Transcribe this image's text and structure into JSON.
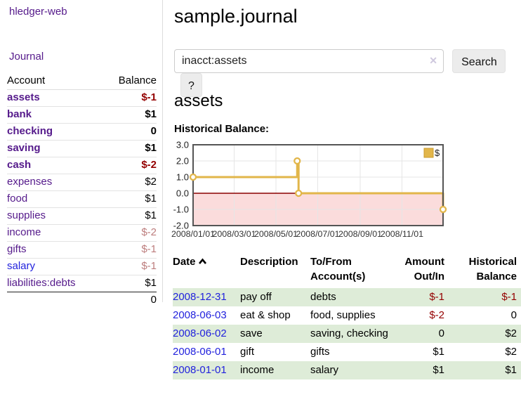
{
  "sidebar": {
    "brand": "hledger-web",
    "nav": {
      "journal_label": "Journal"
    },
    "accounts_table": {
      "headers": {
        "account": "Account",
        "balance": "Balance"
      },
      "rows": [
        {
          "label": "assets",
          "depth": 0,
          "bold": true,
          "link": "purple",
          "balance": "$-1",
          "tone": "neg-strong"
        },
        {
          "label": "bank",
          "depth": 1,
          "bold": true,
          "link": "purple",
          "balance": "$1",
          "tone": "normal"
        },
        {
          "label": "checking",
          "depth": 2,
          "bold": true,
          "link": "purple",
          "balance": "0",
          "tone": "normal"
        },
        {
          "label": "saving",
          "depth": 2,
          "bold": true,
          "link": "purple",
          "balance": "$1",
          "tone": "normal"
        },
        {
          "label": "cash",
          "depth": 1,
          "bold": true,
          "link": "purple",
          "balance": "$-2",
          "tone": "neg-strong"
        },
        {
          "label": "expenses",
          "depth": 0,
          "bold": false,
          "link": "purple",
          "balance": "$2",
          "tone": "normal"
        },
        {
          "label": "food",
          "depth": 1,
          "bold": false,
          "link": "purple",
          "balance": "$1",
          "tone": "normal"
        },
        {
          "label": "supplies",
          "depth": 1,
          "bold": false,
          "link": "purple",
          "balance": "$1",
          "tone": "normal"
        },
        {
          "label": "income",
          "depth": 0,
          "bold": false,
          "link": "purple",
          "balance": "$-2",
          "tone": "neg-soft"
        },
        {
          "label": "gifts",
          "depth": 1,
          "bold": false,
          "link": "purple",
          "balance": "$-1",
          "tone": "neg-soft"
        },
        {
          "label": "salary",
          "depth": 1,
          "bold": false,
          "link": "blue",
          "balance": "$-1",
          "tone": "neg-soft"
        },
        {
          "label": "liabilities:debts",
          "depth": 0,
          "bold": false,
          "link": "purple",
          "balance": "$1",
          "tone": "normal"
        }
      ],
      "total": "0"
    }
  },
  "main": {
    "title": "sample.journal",
    "search": {
      "value": "inacct:assets",
      "clear_icon": "✕",
      "button_label": "Search",
      "help_label": "?"
    },
    "account_heading": "assets",
    "chart_label": "Historical Balance:",
    "register_table": {
      "headers": {
        "date": "Date",
        "description": "Description",
        "accounts": "To/From Account(s)",
        "amount": "Amount Out/In",
        "balance": "Historical Balance"
      },
      "rows": [
        {
          "date": "2008-12-31",
          "description": "pay off",
          "accounts": "debts",
          "amount": "$-1",
          "amount_tone": "neg-strong",
          "balance": "$-1",
          "balance_tone": "neg-strong",
          "shaded": true
        },
        {
          "date": "2008-06-03",
          "description": "eat & shop",
          "accounts": "food, supplies",
          "amount": "$-2",
          "amount_tone": "neg-strong",
          "balance": "0",
          "balance_tone": "normal",
          "shaded": false
        },
        {
          "date": "2008-06-02",
          "description": "save",
          "accounts": "saving, checking",
          "amount": "0",
          "amount_tone": "normal",
          "balance": "$2",
          "balance_tone": "normal",
          "shaded": true
        },
        {
          "date": "2008-06-01",
          "description": "gift",
          "accounts": "gifts",
          "amount": "$1",
          "amount_tone": "normal",
          "balance": "$2",
          "balance_tone": "normal",
          "shaded": false
        },
        {
          "date": "2008-01-01",
          "description": "income",
          "accounts": "salary",
          "amount": "$1",
          "amount_tone": "normal",
          "balance": "$1",
          "balance_tone": "normal",
          "shaded": true
        }
      ]
    }
  },
  "colors": {
    "link_purple": "#551a8b",
    "link_blue": "#2222dd",
    "negative_strong": "#940000",
    "negative_soft": "#bd7d7d",
    "row_shade_green": "#deecd8",
    "chart_line_gold": "#e2b64a"
  },
  "chart_data": {
    "type": "line",
    "step": true,
    "title": "Historical Balance:",
    "legend": "$",
    "legend_position": "top-right",
    "grid": true,
    "x_start": "2008-01-01",
    "x_end": "2008-12-31",
    "ylim": [
      -2,
      3
    ],
    "yticks": [
      "3.0",
      "2.0",
      "1.0",
      "0.0",
      "-1.0",
      "-2.0"
    ],
    "xticks": [
      {
        "date": "2008-01-01",
        "label": "2008/01/01"
      },
      {
        "date": "2008-03-01",
        "label": "2008/03/01"
      },
      {
        "date": "2008-05-01",
        "label": "2008/05/01"
      },
      {
        "date": "2008-07-01",
        "label": "2008/07/01"
      },
      {
        "date": "2008-09-01",
        "label": "2008/09/01"
      },
      {
        "date": "2008-11-01",
        "label": "2008/11/01"
      }
    ],
    "series": [
      {
        "name": "$",
        "points": [
          [
            "2008-01-01",
            1
          ],
          [
            "2008-06-01",
            2
          ],
          [
            "2008-06-03",
            0
          ],
          [
            "2008-12-31",
            -1
          ]
        ]
      }
    ],
    "colors": {
      "line": "#e2b64a",
      "marker_fill": "#ffffff",
      "legend_border": "#c99b2d",
      "negative_region": "#fbdcdc",
      "zero_line": "#8b0000",
      "grid": "#e6e6e6",
      "border": "#555555",
      "tick_text": "#333333"
    }
  }
}
